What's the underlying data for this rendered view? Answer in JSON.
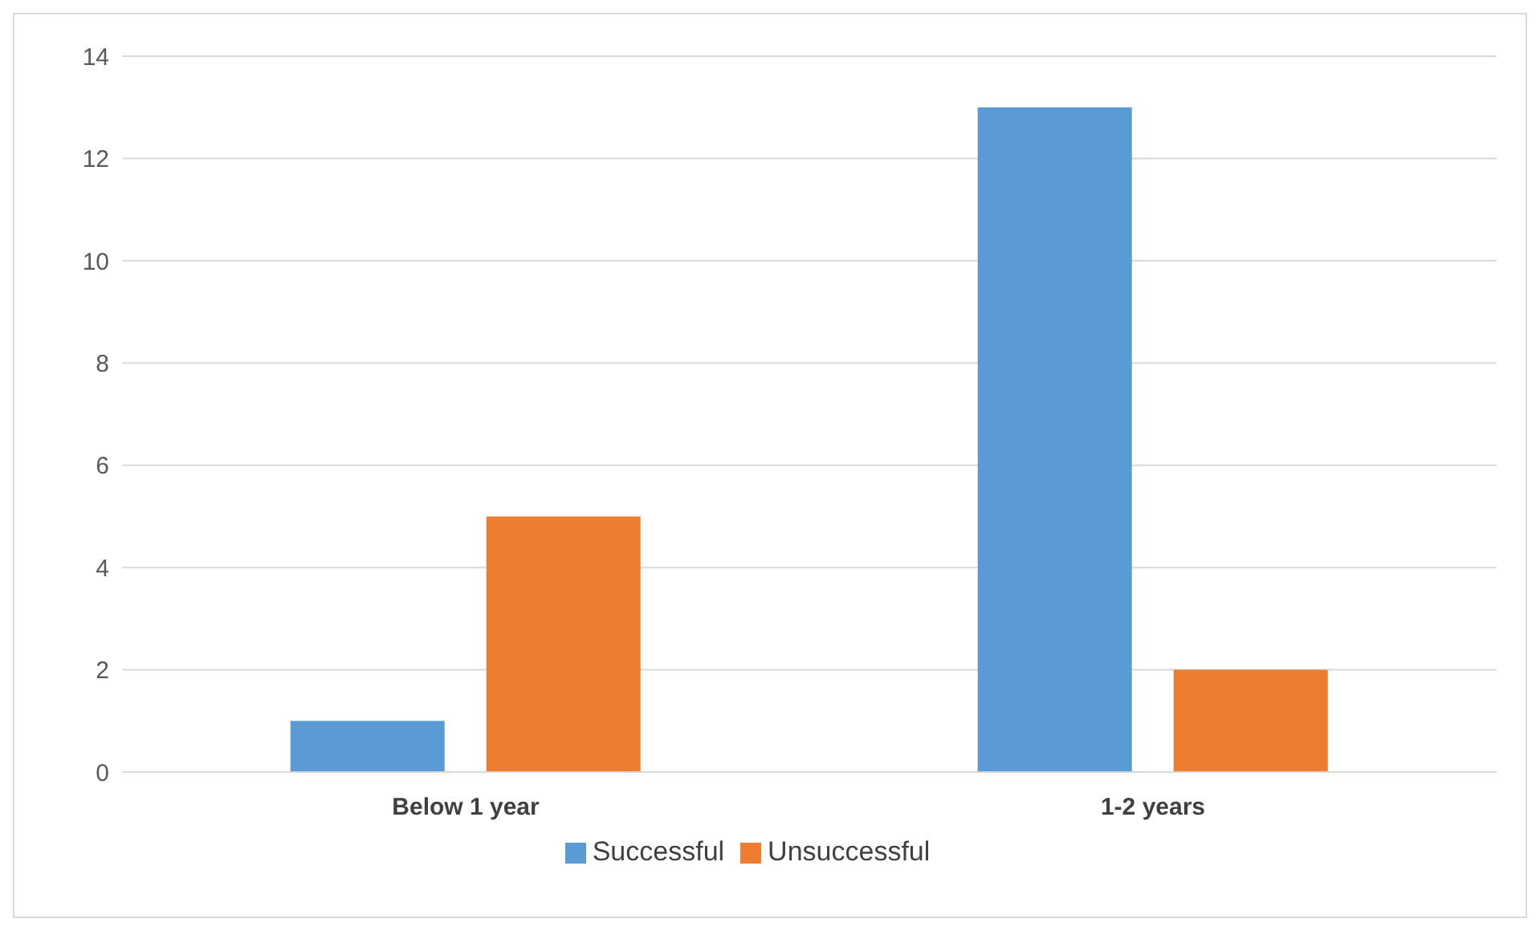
{
  "chart_data": {
    "type": "bar",
    "categories": [
      "Below 1 year",
      "1-2 years"
    ],
    "series": [
      {
        "name": "Successful",
        "color": "#5b9bd5",
        "values": [
          1,
          13
        ]
      },
      {
        "name": "Unsuccessful",
        "color": "#ed7d31",
        "values": [
          5,
          2
        ]
      }
    ],
    "ylim": [
      0,
      14
    ],
    "yticks": [
      0,
      2,
      4,
      6,
      8,
      10,
      12,
      14
    ],
    "grid": "y",
    "legend": "bottom"
  }
}
